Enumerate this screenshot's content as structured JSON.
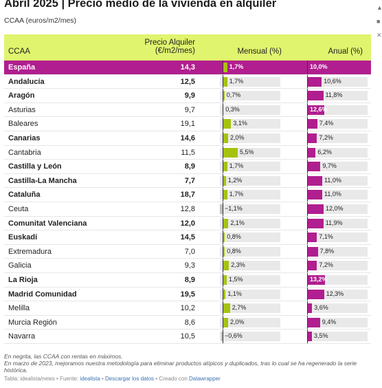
{
  "title": "Abril 2025 | Precio medio de la vivienda en alquiler",
  "subtitle": "CCAA (euros/m2/mes)",
  "header": {
    "col_ccaa": "CCAA",
    "col_precio_line1": "Precio Alquiler",
    "col_precio_line2": "(€/m2/mes)",
    "col_mensual": "Mensual (%)",
    "col_anual": "Anual (%)"
  },
  "colors": {
    "header_bg": "#e1f46e",
    "highlight": "#b01e8f",
    "mensual_bar": "#a6c20e",
    "anual_bar": "#b01e8f"
  },
  "side_icons": [
    "twitter-icon",
    "linkedin-icon",
    "x-icon"
  ],
  "chart_data": {
    "type": "table",
    "columns": [
      "CCAA",
      "Precio Alquiler (€/m2/mes)",
      "Mensual (%)",
      "Anual (%)"
    ],
    "rows": [
      {
        "name": "España",
        "precio": "14,3",
        "mensual": 1.7,
        "mensual_label": "1,7%",
        "anual": 10.0,
        "anual_label": "10,0%",
        "bold": true,
        "highlight": true
      },
      {
        "name": "Andalucía",
        "precio": "12,5",
        "mensual": 1.7,
        "mensual_label": "1,7%",
        "anual": 10.6,
        "anual_label": "10,6%",
        "bold": true
      },
      {
        "name": "Aragón",
        "precio": "9,9",
        "mensual": 0.7,
        "mensual_label": "0,7%",
        "anual": 11.8,
        "anual_label": "11,8%",
        "bold": true
      },
      {
        "name": "Asturias",
        "precio": "9,7",
        "mensual": 0.3,
        "mensual_label": "0,3%",
        "anual": 12.6,
        "anual_label": "12,6%",
        "bold": false
      },
      {
        "name": "Baleares",
        "precio": "19,1",
        "mensual": 3.1,
        "mensual_label": "3,1%",
        "anual": 7.4,
        "anual_label": "7,4%",
        "bold": false
      },
      {
        "name": "Canarias",
        "precio": "14,6",
        "mensual": 2.0,
        "mensual_label": "2,0%",
        "anual": 7.2,
        "anual_label": "7,2%",
        "bold": true
      },
      {
        "name": "Cantabria",
        "precio": "11,5",
        "mensual": 5.5,
        "mensual_label": "5,5%",
        "anual": 6.2,
        "anual_label": "6,2%",
        "bold": false
      },
      {
        "name": "Castilla y León",
        "precio": "8,9",
        "mensual": 1.7,
        "mensual_label": "1,7%",
        "anual": 9.7,
        "anual_label": "9,7%",
        "bold": true
      },
      {
        "name": "Castilla-La Mancha",
        "precio": "7,7",
        "mensual": 1.2,
        "mensual_label": "1,2%",
        "anual": 11.0,
        "anual_label": "11,0%",
        "bold": true
      },
      {
        "name": "Cataluña",
        "precio": "18,7",
        "mensual": 1.7,
        "mensual_label": "1,7%",
        "anual": 11.0,
        "anual_label": "11,0%",
        "bold": true
      },
      {
        "name": "Ceuta",
        "precio": "12,8",
        "mensual": -1.1,
        "mensual_label": "−1,1%",
        "anual": 12.0,
        "anual_label": "12,0%",
        "bold": false
      },
      {
        "name": "Comunitat Valenciana",
        "precio": "12,0",
        "mensual": 2.1,
        "mensual_label": "2,1%",
        "anual": 11.9,
        "anual_label": "11,9%",
        "bold": true
      },
      {
        "name": "Euskadi",
        "precio": "14,5",
        "mensual": 0.8,
        "mensual_label": "0,8%",
        "anual": 7.1,
        "anual_label": "7,1%",
        "bold": true
      },
      {
        "name": "Extremadura",
        "precio": "7,0",
        "mensual": 0.8,
        "mensual_label": "0,8%",
        "anual": 7.8,
        "anual_label": "7,8%",
        "bold": false
      },
      {
        "name": "Galicia",
        "precio": "9,3",
        "mensual": 2.3,
        "mensual_label": "2,3%",
        "anual": 7.2,
        "anual_label": "7,2%",
        "bold": false
      },
      {
        "name": "La Rioja",
        "precio": "8,9",
        "mensual": 1.5,
        "mensual_label": "1,5%",
        "anual": 13.2,
        "anual_label": "13,2%",
        "bold": true
      },
      {
        "name": "Madrid Comunidad",
        "precio": "19,5",
        "mensual": 1.1,
        "mensual_label": "1,1%",
        "anual": 12.3,
        "anual_label": "12,3%",
        "bold": true
      },
      {
        "name": "Melilla",
        "precio": "10,2",
        "mensual": 2.7,
        "mensual_label": "2,7%",
        "anual": 3.6,
        "anual_label": "3,6%",
        "bold": false
      },
      {
        "name": "Murcia Región",
        "precio": "8,6",
        "mensual": 2.0,
        "mensual_label": "2,0%",
        "anual": 9.4,
        "anual_label": "9,4%",
        "bold": false
      },
      {
        "name": "Navarra",
        "precio": "10,5",
        "mensual": -0.6,
        "mensual_label": "−0,6%",
        "anual": 3.5,
        "anual_label": "3,5%",
        "bold": false
      }
    ]
  },
  "notes": {
    "line1": "En negrita, las CCAA con rentas en máximos.",
    "line2": "En marzo de 2023, mejoramos nuestra metodología para eliminar productos atípicos y duplicados, tras lo cual se ha regenerado la serie histórica."
  },
  "footer": {
    "prefix": "Tabla: idealista/news • Fuente: ",
    "source_link": "idealista",
    "sep1": " • ",
    "download_link": "Descargar los datos",
    "sep2": " • Creado con ",
    "created_link": "Datawrapper"
  }
}
